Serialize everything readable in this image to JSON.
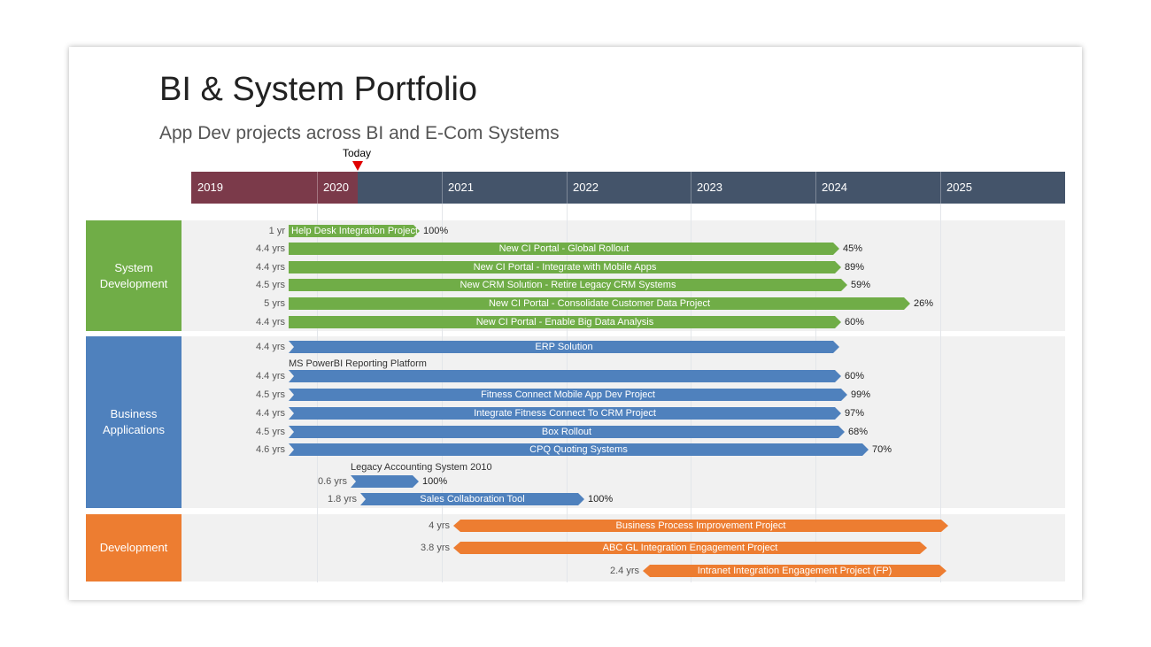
{
  "title": "BI & System Portfolio",
  "subtitle": "App Dev projects across BI and E-Com Systems",
  "colors": {
    "past": "#7b3a4a",
    "future": "#44546a",
    "green": "#70ad47",
    "blue": "#4f81bd",
    "orange": "#ed7d31",
    "today": "#e00000"
  },
  "chart_data": {
    "type": "gantt",
    "today_label": "Today",
    "years": [
      "2019",
      "2020",
      "2021",
      "2022",
      "2023",
      "2024",
      "2025"
    ],
    "groups": [
      {
        "name": "System Development",
        "tasks": [
          {
            "name": "Help Desk Integration Project",
            "duration": "1 yr",
            "progress": "100%"
          },
          {
            "name": "New CI Portal - Global Rollout",
            "duration": "4.4 yrs",
            "progress": "45%"
          },
          {
            "name": "New CI Portal - Integrate with Mobile Apps",
            "duration": "4.4 yrs",
            "progress": "89%"
          },
          {
            "name": "New CRM Solution - Retire Legacy CRM Systems",
            "duration": "4.5 yrs",
            "progress": "59%"
          },
          {
            "name": "New CI Portal - Consolidate Customer Data Project",
            "duration": "5 yrs",
            "progress": "26%"
          },
          {
            "name": "New CI Portal - Enable Big Data Analysis",
            "duration": "4.4 yrs",
            "progress": "60%"
          }
        ]
      },
      {
        "name": "Business Applications",
        "tasks": [
          {
            "name": "ERP Solution",
            "duration": "4.4 yrs",
            "progress": ""
          },
          {
            "name": "MS PowerBI Reporting Platform",
            "duration": "4.4 yrs",
            "progress": "60%"
          },
          {
            "name": "Fitness Connect Mobile App Dev Project",
            "duration": "4.5 yrs",
            "progress": "99%"
          },
          {
            "name": "Integrate Fitness Connect To CRM Project",
            "duration": "4.4 yrs",
            "progress": "97%"
          },
          {
            "name": "Box Rollout",
            "duration": "4.5 yrs",
            "progress": "68%"
          },
          {
            "name": "CPQ Quoting Systems",
            "duration": "4.6 yrs",
            "progress": "70%"
          },
          {
            "name": "Legacy Accounting System 2010",
            "duration": "0.6 yrs",
            "progress": "100%"
          },
          {
            "name": "Sales Collaboration Tool",
            "duration": "1.8 yrs",
            "progress": "100%"
          }
        ]
      },
      {
        "name": "Development",
        "tasks": [
          {
            "name": "Business Process Improvement Project",
            "duration": "4 yrs",
            "progress": ""
          },
          {
            "name": "ABC GL Integration Engagement Project",
            "duration": "3.8 yrs",
            "progress": ""
          },
          {
            "name": "Intranet Integration Engagement Project (FP)",
            "duration": "2.4 yrs",
            "progress": ""
          }
        ]
      }
    ]
  }
}
